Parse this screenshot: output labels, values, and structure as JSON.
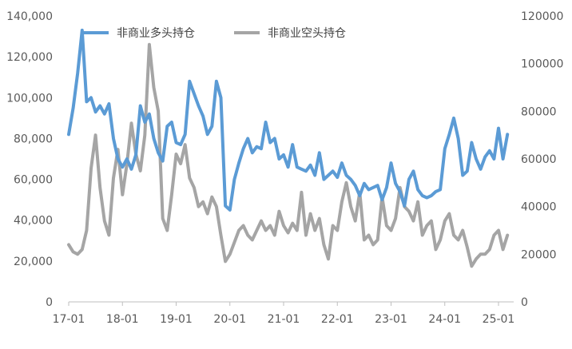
{
  "chart_data": {
    "type": "line",
    "title": "",
    "xlabel": "",
    "ylabel": "",
    "legend_position": "top-left",
    "grid": false,
    "x_tick_labels": [
      "17-01",
      "18-01",
      "19-01",
      "20-01",
      "21-01",
      "22-01",
      "23-01",
      "24-01",
      "25-01"
    ],
    "x_range": [
      "2017-01",
      "2025-03"
    ],
    "y_left": {
      "range": [
        0,
        140000
      ],
      "tick_labels": [
        "0",
        "20,000",
        "40,000",
        "60,000",
        "80,000",
        "100,000",
        "120,000",
        "140,000"
      ]
    },
    "y_right": {
      "range": [
        0,
        120000
      ],
      "tick_labels": [
        "0",
        "20000",
        "40000",
        "60000",
        "80000",
        "100000",
        "120000"
      ]
    },
    "series": [
      {
        "name": "非商业多头持仓",
        "axis": "left",
        "color": "#5B9BD5",
        "x": [
          "2017-01",
          "2017-02",
          "2017-03",
          "2017-04",
          "2017-05",
          "2017-06",
          "2017-07",
          "2017-08",
          "2017-09",
          "2017-10",
          "2017-11",
          "2017-12",
          "2018-01",
          "2018-02",
          "2018-03",
          "2018-04",
          "2018-05",
          "2018-06",
          "2018-07",
          "2018-08",
          "2018-09",
          "2018-10",
          "2018-11",
          "2018-12",
          "2019-01",
          "2019-02",
          "2019-03",
          "2019-04",
          "2019-05",
          "2019-06",
          "2019-07",
          "2019-08",
          "2019-09",
          "2019-10",
          "2019-11",
          "2019-12",
          "2020-01",
          "2020-02",
          "2020-03",
          "2020-04",
          "2020-05",
          "2020-06",
          "2020-07",
          "2020-08",
          "2020-09",
          "2020-10",
          "2020-11",
          "2020-12",
          "2021-01",
          "2021-02",
          "2021-03",
          "2021-04",
          "2021-05",
          "2021-06",
          "2021-07",
          "2021-08",
          "2021-09",
          "2021-10",
          "2021-11",
          "2021-12",
          "2022-01",
          "2022-02",
          "2022-03",
          "2022-04",
          "2022-05",
          "2022-06",
          "2022-07",
          "2022-08",
          "2022-09",
          "2022-10",
          "2022-11",
          "2022-12",
          "2023-01",
          "2023-02",
          "2023-03",
          "2023-04",
          "2023-05",
          "2023-06",
          "2023-07",
          "2023-08",
          "2023-09",
          "2023-10",
          "2023-11",
          "2023-12",
          "2024-01",
          "2024-02",
          "2024-03",
          "2024-04",
          "2024-05",
          "2024-06",
          "2024-07",
          "2024-08",
          "2024-09",
          "2024-10",
          "2024-11",
          "2024-12",
          "2025-01",
          "2025-02",
          "2025-03"
        ],
        "values": [
          82000,
          95000,
          112000,
          133000,
          98000,
          100000,
          93000,
          96000,
          92000,
          97000,
          80000,
          70000,
          66000,
          70000,
          65000,
          72000,
          96000,
          88000,
          92000,
          80000,
          73000,
          69000,
          86000,
          88000,
          78000,
          77000,
          82000,
          108000,
          102000,
          96000,
          91000,
          82000,
          86000,
          108000,
          100000,
          47000,
          45000,
          60000,
          68000,
          75000,
          80000,
          73000,
          76000,
          75000,
          88000,
          78000,
          80000,
          70000,
          72000,
          66000,
          77000,
          66000,
          65000,
          64000,
          67000,
          62000,
          73000,
          60000,
          62000,
          64000,
          61000,
          68000,
          62000,
          60000,
          57000,
          52000,
          58000,
          55000,
          56000,
          57000,
          50000,
          56000,
          68000,
          58000,
          54000,
          47000,
          60000,
          64000,
          55000,
          52000,
          51000,
          52000,
          54000,
          55000,
          75000,
          82000,
          90000,
          80000,
          62000,
          64000,
          78000,
          70000,
          65000,
          71000,
          74000,
          70000,
          85000,
          70000,
          82000
        ]
      },
      {
        "name": "非商业空头持仓",
        "axis": "right",
        "color": "#A5A5A5",
        "x": [
          "2017-01",
          "2017-02",
          "2017-03",
          "2017-04",
          "2017-05",
          "2017-06",
          "2017-07",
          "2017-08",
          "2017-09",
          "2017-10",
          "2017-11",
          "2017-12",
          "2018-01",
          "2018-02",
          "2018-03",
          "2018-04",
          "2018-05",
          "2018-06",
          "2018-07",
          "2018-08",
          "2018-09",
          "2018-10",
          "2018-11",
          "2018-12",
          "2019-01",
          "2019-02",
          "2019-03",
          "2019-04",
          "2019-05",
          "2019-06",
          "2019-07",
          "2019-08",
          "2019-09",
          "2019-10",
          "2019-11",
          "2019-12",
          "2020-01",
          "2020-02",
          "2020-03",
          "2020-04",
          "2020-05",
          "2020-06",
          "2020-07",
          "2020-08",
          "2020-09",
          "2020-10",
          "2020-11",
          "2020-12",
          "2021-01",
          "2021-02",
          "2021-03",
          "2021-04",
          "2021-05",
          "2021-06",
          "2021-07",
          "2021-08",
          "2021-09",
          "2021-10",
          "2021-11",
          "2021-12",
          "2022-01",
          "2022-02",
          "2022-03",
          "2022-04",
          "2022-05",
          "2022-06",
          "2022-07",
          "2022-08",
          "2022-09",
          "2022-10",
          "2022-11",
          "2022-12",
          "2023-01",
          "2023-02",
          "2023-03",
          "2023-04",
          "2023-05",
          "2023-06",
          "2023-07",
          "2023-08",
          "2023-09",
          "2023-10",
          "2023-11",
          "2023-12",
          "2024-01",
          "2024-02",
          "2024-03",
          "2024-04",
          "2024-05",
          "2024-06",
          "2024-07",
          "2024-08",
          "2024-09",
          "2024-10",
          "2024-11",
          "2024-12",
          "2025-01",
          "2025-02",
          "2025-03"
        ],
        "values": [
          24000,
          21000,
          20000,
          22000,
          30000,
          56000,
          70000,
          48000,
          34000,
          28000,
          52000,
          64000,
          45000,
          58000,
          75000,
          62000,
          55000,
          70000,
          108000,
          90000,
          80000,
          35000,
          30000,
          45000,
          62000,
          58000,
          66000,
          52000,
          48000,
          40000,
          42000,
          37000,
          44000,
          40000,
          28000,
          17000,
          20000,
          25000,
          30000,
          32000,
          28000,
          26000,
          30000,
          34000,
          30000,
          32000,
          28000,
          38000,
          32000,
          29000,
          33000,
          30000,
          46000,
          28000,
          37000,
          30000,
          35000,
          24000,
          18000,
          32000,
          30000,
          42000,
          50000,
          40000,
          34000,
          46000,
          26000,
          28000,
          24000,
          26000,
          44000,
          32000,
          30000,
          35000,
          48000,
          40000,
          38000,
          34000,
          42000,
          28000,
          32000,
          34000,
          22000,
          26000,
          34000,
          37000,
          28000,
          26000,
          30000,
          23000,
          15000,
          18000,
          20000,
          20000,
          22000,
          28000,
          30000,
          22000,
          28000
        ]
      }
    ]
  }
}
